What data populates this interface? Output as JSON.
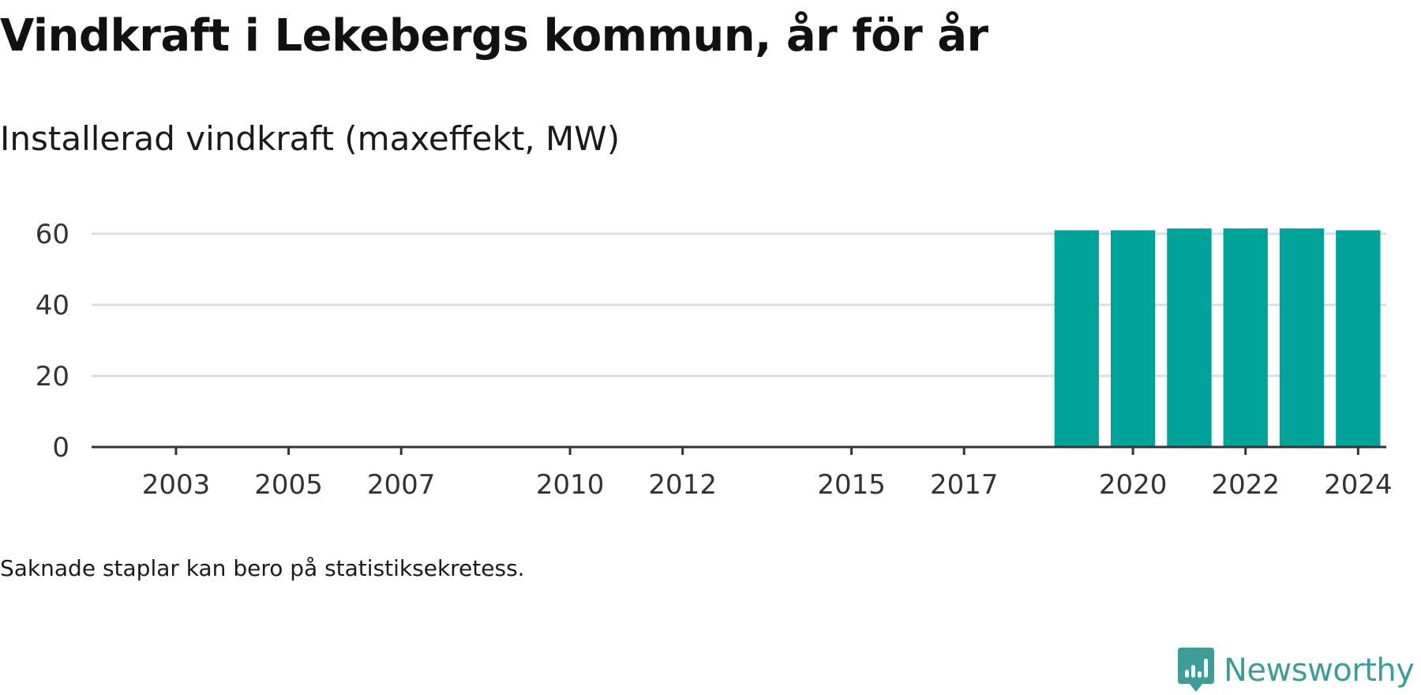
{
  "header": {
    "title": "Vindkraft i Lekebergs kommun, år för år",
    "subtitle": "Installerad vindkraft (maxeffekt, MW)"
  },
  "footer": {
    "note": "Saknade staplar kan bero på statistiksekretess.",
    "brand": "Newsworthy"
  },
  "colors": {
    "bar": "#00a39a",
    "grid": "#dddddd",
    "axis": "#333333",
    "brand": "#3f9d98"
  },
  "chart_data": {
    "type": "bar",
    "title": "Vindkraft i Lekebergs kommun, år för år",
    "subtitle": "Installerad vindkraft (maxeffekt, MW)",
    "xlabel": "",
    "ylabel": "",
    "categories": [
      "2002",
      "2003",
      "2004",
      "2005",
      "2006",
      "2007",
      "2008",
      "2009",
      "2010",
      "2011",
      "2012",
      "2013",
      "2014",
      "2015",
      "2016",
      "2017",
      "2018",
      "2019",
      "2020",
      "2021",
      "2022",
      "2023",
      "2024"
    ],
    "values": [
      0,
      0,
      0,
      0,
      0,
      0,
      0,
      0,
      0,
      0,
      0,
      0,
      0,
      0,
      0,
      0,
      0,
      61,
      61,
      61.5,
      61.5,
      61.5,
      61
    ],
    "x_tick_labels": [
      "2003",
      "2005",
      "2007",
      "2010",
      "2012",
      "2015",
      "2017",
      "2020",
      "2022",
      "2024"
    ],
    "y_ticks": [
      0,
      20,
      40,
      60
    ],
    "ylim": [
      0,
      60
    ],
    "grid": true,
    "legend": "none"
  }
}
